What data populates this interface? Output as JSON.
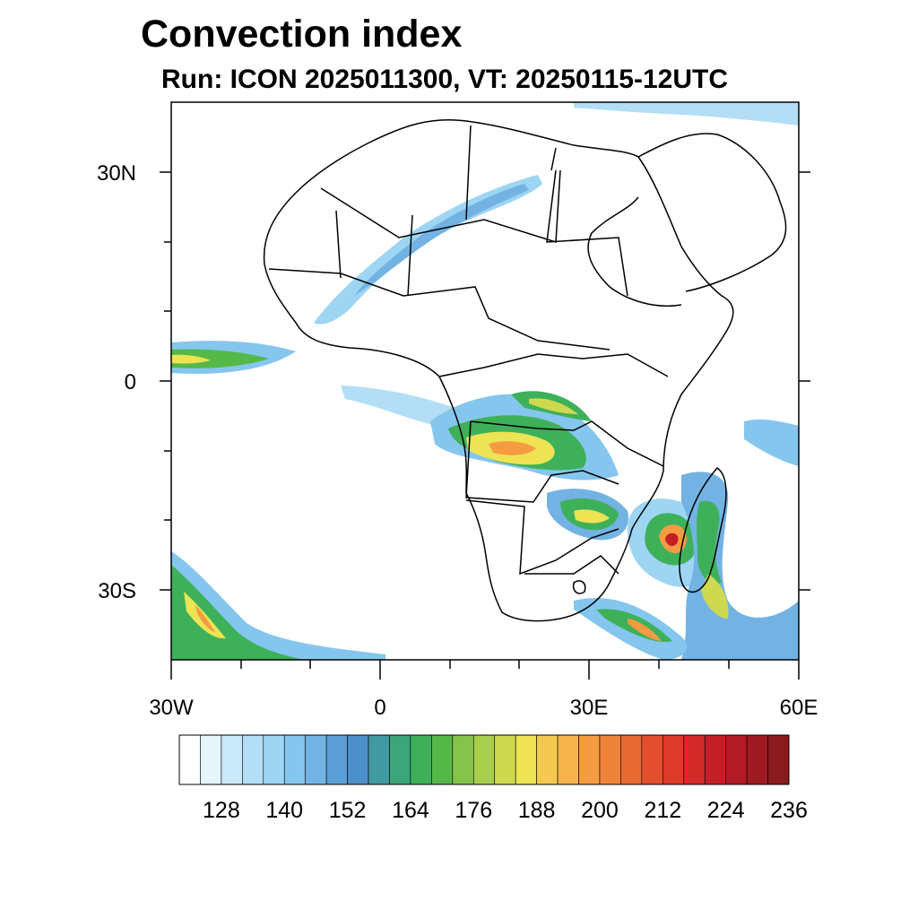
{
  "title": "Convection index",
  "subtitle": "Run: ICON 2025011300,  VT: 20250115-12UTC",
  "map": {
    "region": "Africa",
    "lon_range": [
      -30,
      60
    ],
    "lat_range": [
      -40,
      40
    ],
    "lat_ticks": [
      {
        "value": 30,
        "label": "30N"
      },
      {
        "value": 0,
        "label": "0"
      },
      {
        "value": -30,
        "label": "30S"
      }
    ],
    "lon_ticks": [
      {
        "value": -30,
        "label": "30W"
      },
      {
        "value": 0,
        "label": "0"
      },
      {
        "value": 30,
        "label": "30E"
      },
      {
        "value": 60,
        "label": "60E"
      }
    ]
  },
  "colorbar": {
    "colors": [
      "#ffffff",
      "#e6f4fc",
      "#c9e8f8",
      "#b3def6",
      "#9dd5f3",
      "#85c6ee",
      "#72b3e3",
      "#5c9fd6",
      "#4d8fcb",
      "#3f9aa2",
      "#3aa67a",
      "#3eb05a",
      "#54b948",
      "#84c44a",
      "#a8cf4c",
      "#cfd94f",
      "#ede354",
      "#f5c94f",
      "#f6b44a",
      "#f59c42",
      "#f0833a",
      "#ea6a33",
      "#e34f2d",
      "#dd3a2a",
      "#d42a29",
      "#c41f27",
      "#b21b25",
      "#9f1a22",
      "#8b1a1e"
    ],
    "labels": [
      "128",
      "140",
      "152",
      "164",
      "176",
      "188",
      "200",
      "212",
      "224",
      "236"
    ]
  },
  "colors": {
    "land_outline": "#000000",
    "ocean": "#ffffff",
    "frame": "#000000"
  }
}
